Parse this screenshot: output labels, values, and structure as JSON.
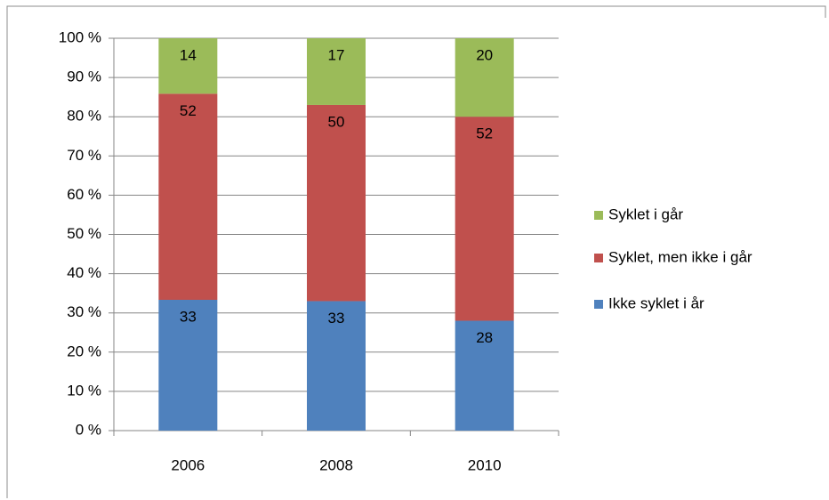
{
  "chart_data": {
    "type": "bar",
    "stacking": "percent",
    "categories": [
      "2006",
      "2008",
      "2010"
    ],
    "series": [
      {
        "name": "Ikke syklet i år",
        "color": "#4f81bd",
        "values": [
          33,
          33,
          28
        ]
      },
      {
        "name": "Syklet, men ikke i går",
        "color": "#c0504d",
        "values": [
          52,
          50,
          52
        ]
      },
      {
        "name": "Syklet i går",
        "color": "#9bbb59",
        "values": [
          14,
          17,
          20
        ]
      }
    ],
    "ylim": [
      0,
      100
    ],
    "yticks": [
      {
        "value": 0,
        "label": "0 %"
      },
      {
        "value": 10,
        "label": "10 %"
      },
      {
        "value": 20,
        "label": "20 %"
      },
      {
        "value": 30,
        "label": "30 %"
      },
      {
        "value": 40,
        "label": "40 %"
      },
      {
        "value": 50,
        "label": "50 %"
      },
      {
        "value": 60,
        "label": "60 %"
      },
      {
        "value": 70,
        "label": "70 %"
      },
      {
        "value": 80,
        "label": "80 %"
      },
      {
        "value": 90,
        "label": "90 %"
      },
      {
        "value": 100,
        "label": "100 %"
      }
    ],
    "grid": true,
    "legend": "right"
  }
}
